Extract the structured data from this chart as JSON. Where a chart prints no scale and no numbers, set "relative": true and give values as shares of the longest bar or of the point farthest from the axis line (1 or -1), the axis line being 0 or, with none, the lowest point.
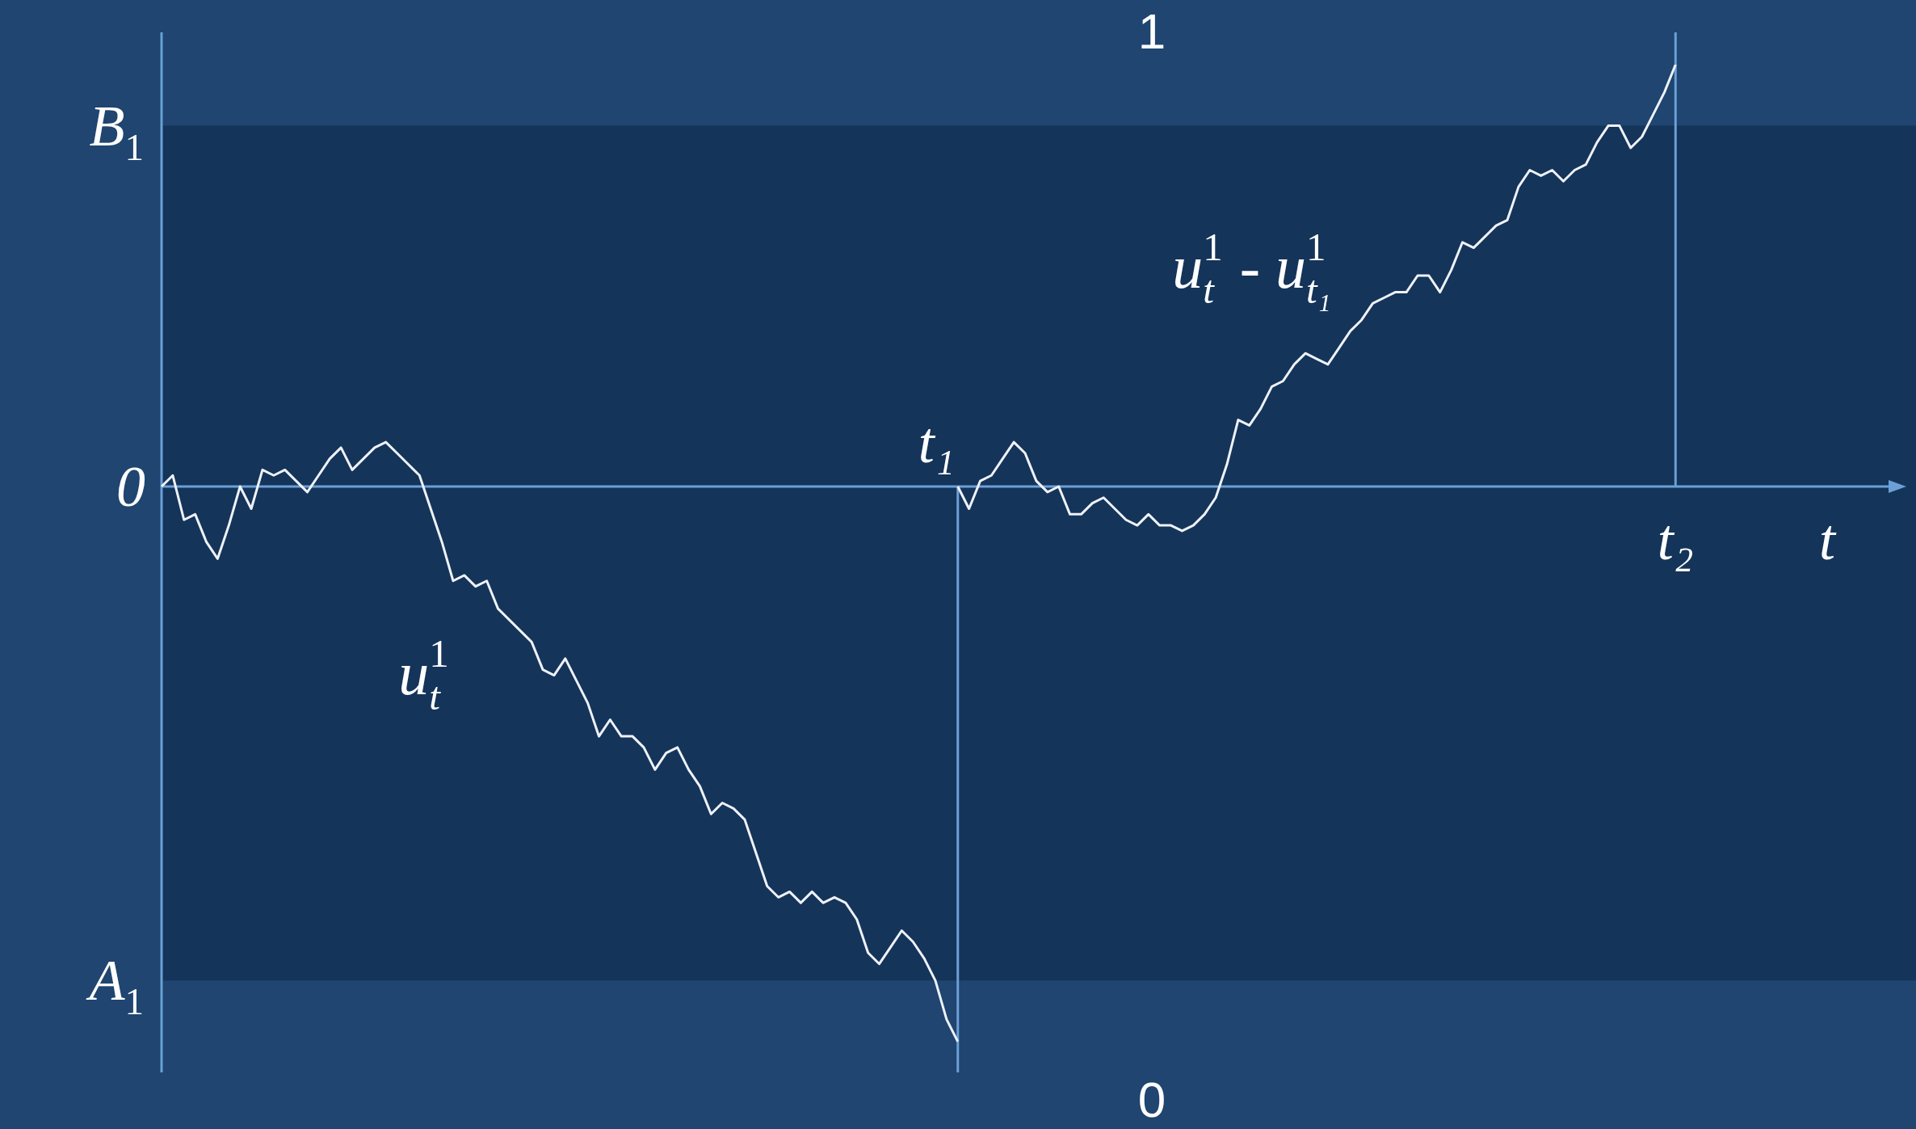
{
  "chart_data": {
    "type": "line",
    "relative": true,
    "xlabel": "t",
    "categories": [
      null,
      null,
      null,
      null,
      null,
      null,
      null,
      null,
      null,
      null,
      null,
      null,
      null,
      null,
      null,
      null,
      null,
      null,
      null,
      null,
      null,
      null,
      null,
      null,
      null,
      null,
      null,
      null,
      null,
      null,
      null,
      null,
      null,
      null,
      null,
      null,
      null,
      null,
      null,
      null,
      null,
      null,
      null,
      null,
      null,
      null,
      null,
      null,
      null,
      null,
      null,
      null,
      null,
      null,
      null,
      null,
      null,
      null,
      null,
      null,
      null,
      null,
      null,
      null,
      null,
      null,
      null,
      null,
      null,
      null,
      null,
      null,
      null,
      null,
      null,
      null,
      null,
      null,
      null,
      null,
      null,
      null,
      null,
      null,
      null,
      null,
      null,
      null,
      null,
      null,
      null,
      null,
      null,
      null,
      null,
      null,
      null,
      null,
      null,
      null,
      null,
      null,
      null,
      null,
      null,
      null,
      null,
      null,
      null,
      null,
      null,
      null,
      null,
      null,
      null,
      null,
      null,
      null,
      null,
      null,
      null,
      null,
      null,
      null,
      null,
      null,
      null,
      null,
      null,
      null,
      null,
      null,
      null,
      null,
      null,
      null,
      null,
      null,
      null,
      null,
      null,
      null,
      null,
      null,
      null,
      null,
      null,
      null,
      null,
      null,
      null,
      null,
      null,
      null,
      null,
      null
    ],
    "series": [
      {
        "name": "u$_{t}$$^{1}$",
        "color": "#eef2f7",
        "values": [
          0,
          0.02,
          -0.06,
          -0.05,
          -0.1,
          -0.13,
          -0.07,
          0.0,
          -0.04,
          0.03,
          0.02,
          0.03,
          0.01,
          -0.01,
          0.02,
          0.05,
          0.07,
          0.03,
          0.05,
          0.07,
          0.08,
          0.06,
          0.04,
          0.02,
          -0.04,
          -0.1,
          -0.17,
          -0.16,
          -0.18,
          -0.17,
          -0.22,
          -0.24,
          -0.26,
          -0.28,
          -0.33,
          -0.34,
          -0.31,
          -0.35,
          -0.39,
          -0.45,
          -0.42,
          -0.45,
          -0.45,
          -0.47,
          -0.51,
          -0.48,
          -0.47,
          -0.51,
          -0.54,
          -0.59,
          -0.57,
          -0.58,
          -0.6,
          -0.66,
          -0.72,
          -0.74,
          -0.73,
          -0.75,
          -0.73,
          -0.75,
          -0.74,
          -0.75,
          -0.78,
          -0.84,
          -0.86,
          -0.83,
          -0.8,
          -0.82,
          -0.85,
          -0.89,
          -0.96,
          -1,
          null,
          null,
          null,
          null,
          null,
          null,
          null,
          null,
          null,
          null,
          null,
          null,
          null,
          null,
          null,
          null,
          null,
          null,
          null,
          null,
          null,
          null,
          null,
          null,
          null,
          null,
          null,
          null,
          null,
          null,
          null,
          null,
          null,
          null,
          null,
          null,
          null,
          null,
          null,
          null,
          null,
          null,
          null,
          null,
          null,
          null,
          null,
          null,
          null,
          null,
          null,
          null,
          null,
          null,
          null,
          null,
          null,
          null,
          null,
          null,
          null,
          null,
          null,
          null,
          null,
          null,
          null,
          null,
          null,
          null,
          null,
          null,
          null,
          null,
          null,
          null,
          null,
          null,
          null,
          null,
          null,
          null,
          null,
          null
        ]
      },
      {
        "name": "u$_{t}$$^{1}$ - u$_{t₁}$$^{1}$",
        "color": "#eef2f7",
        "values": [
          null,
          null,
          null,
          null,
          null,
          null,
          null,
          null,
          null,
          null,
          null,
          null,
          null,
          null,
          null,
          null,
          null,
          null,
          null,
          null,
          null,
          null,
          null,
          null,
          null,
          null,
          null,
          null,
          null,
          null,
          null,
          null,
          null,
          null,
          null,
          null,
          null,
          null,
          null,
          null,
          null,
          null,
          null,
          null,
          null,
          null,
          null,
          null,
          null,
          null,
          null,
          null,
          null,
          null,
          null,
          null,
          null,
          null,
          null,
          null,
          null,
          null,
          null,
          null,
          null,
          null,
          null,
          null,
          null,
          null,
          null,
          0,
          -0.04,
          0.01,
          0.02,
          0.05,
          0.08,
          0.06,
          0.01,
          -0.01,
          0.0,
          -0.05,
          -0.05,
          -0.03,
          -0.02,
          -0.04,
          -0.06,
          -0.07,
          -0.05,
          -0.07,
          -0.07,
          -0.08,
          -0.07,
          -0.05,
          -0.02,
          0.04,
          0.12,
          0.11,
          0.14,
          0.18,
          0.19,
          0.22,
          0.24,
          0.23,
          0.22,
          0.25,
          0.28,
          0.3,
          0.33,
          0.34,
          0.35,
          0.35,
          0.38,
          0.38,
          0.35,
          0.39,
          0.44,
          0.43,
          0.45,
          0.47,
          0.48,
          0.54,
          0.57,
          0.56,
          0.57,
          0.55,
          0.57,
          0.58,
          0.62,
          0.65,
          0.65,
          0.61,
          0.63,
          0.67,
          0.71,
          0.76,
          null,
          null,
          null,
          null,
          null,
          null,
          null,
          null,
          null,
          null,
          null,
          null,
          null,
          null,
          null,
          null,
          null,
          null,
          null,
          null
        ]
      }
    ],
    "ref_lines": [
      {
        "axis": "y",
        "value": 0,
        "color": "#6b9fd6"
      }
    ],
    "bands": [
      {
        "axis": "y",
        "from": -0.89,
        "to": 0.65,
        "color": "#15345a"
      }
    ],
    "annotations": [
      "1",
      "0",
      "t₁",
      "t₂",
      "B$_{1}$",
      "0",
      "A$_{1}$"
    ],
    "legend": false
  }
}
